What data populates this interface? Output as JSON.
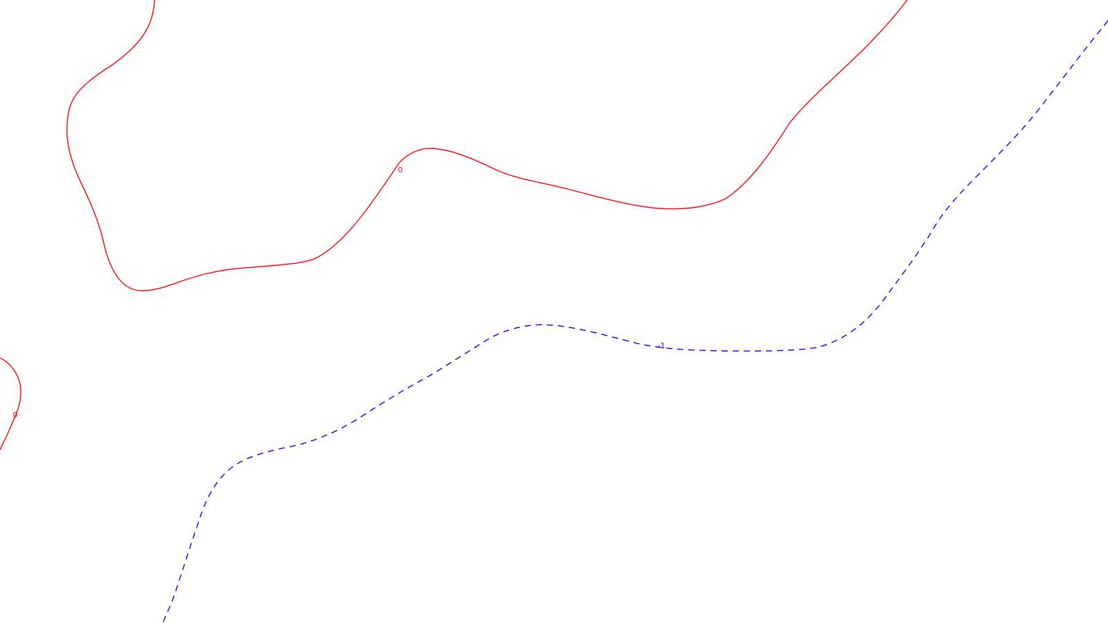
{
  "chart_data": {
    "type": "contour",
    "grid": false,
    "axes_visible": false,
    "levels": [
      {
        "level": "0",
        "color": "#ff0000",
        "line_style": "solid",
        "labels": [
          "0",
          "0"
        ]
      },
      {
        "level": "-1",
        "color": "#0000ff",
        "line_style": "dashed",
        "labels": [
          "-1"
        ]
      }
    ]
  }
}
